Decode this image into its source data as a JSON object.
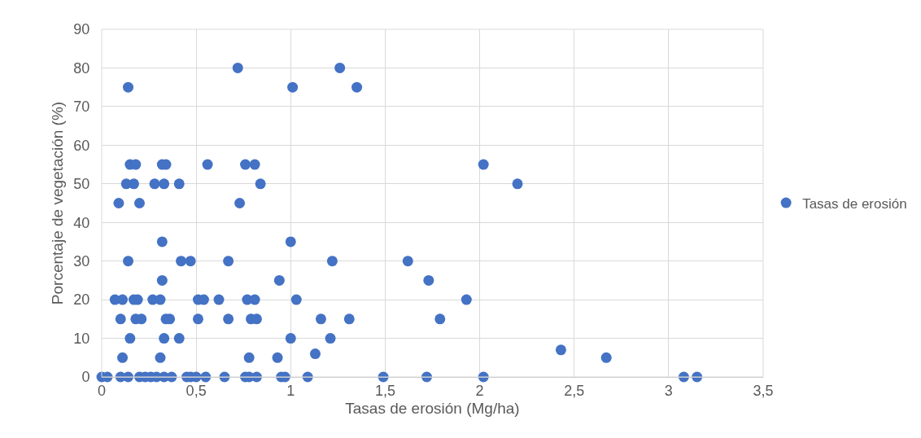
{
  "chart_data": {
    "type": "scatter",
    "xlabel": "Tasas de erosión (Mg/ha)",
    "ylabel": "Porcentaje de vegetación (%)",
    "xlim": [
      0,
      3.5
    ],
    "ylim": [
      0,
      90
    ],
    "xticks": [
      0,
      {
        "value": 0.5,
        "label": "0,5"
      },
      1,
      {
        "value": 1.5,
        "label": "1,5"
      },
      2,
      {
        "value": 2.5,
        "label": "2,5"
      },
      3,
      {
        "value": 3.5,
        "label": "3,5"
      }
    ],
    "yticks": [
      0,
      10,
      20,
      30,
      40,
      50,
      60,
      70,
      80,
      90
    ],
    "grid": true,
    "legend": "right",
    "marker": "circle",
    "series": [
      {
        "name": "Tasas de erosión",
        "color": "#4472c4",
        "x": [
          0,
          0.03,
          0.1,
          0.14,
          0.2,
          0.23,
          0.26,
          0.29,
          0.33,
          0.37,
          0.45,
          0.47,
          0.5,
          0.55,
          0.65,
          0.76,
          0.78,
          0.82,
          0.95,
          0.97,
          1.09,
          1.49,
          1.72,
          2.02,
          3.08,
          3.15,
          0.11,
          0.31,
          0.78,
          0.93,
          1.13,
          2.43,
          2.67,
          0.15,
          0.33,
          0.41,
          1.0,
          1.21,
          0.1,
          0.18,
          0.21,
          0.34,
          0.36,
          0.51,
          0.67,
          0.79,
          0.82,
          1.16,
          1.31,
          1.79,
          0.07,
          0.11,
          0.17,
          0.19,
          0.27,
          0.31,
          0.51,
          0.54,
          0.62,
          0.77,
          0.81,
          1.03,
          1.93,
          0.32,
          0.94,
          1.73,
          0.14,
          0.42,
          0.47,
          0.67,
          1.22,
          1.62,
          0.32,
          1.0,
          0.09,
          0.2,
          0.73,
          0.13,
          0.17,
          0.28,
          0.33,
          0.41,
          0.84,
          2.2,
          0.15,
          0.18,
          0.32,
          0.34,
          0.56,
          0.76,
          0.81,
          2.02,
          0.14,
          1.01,
          1.35,
          0.72,
          1.26
        ],
        "values": [
          0,
          0,
          0,
          0,
          0,
          0,
          0,
          0,
          0,
          0,
          0,
          0,
          0,
          0,
          0,
          0,
          0,
          0,
          0,
          0,
          0,
          0,
          0,
          0,
          0,
          0,
          5,
          5,
          5,
          5,
          6,
          7,
          5,
          10,
          10,
          10,
          10,
          10,
          15,
          15,
          15,
          15,
          15,
          15,
          15,
          15,
          15,
          15,
          15,
          15,
          20,
          20,
          20,
          20,
          20,
          20,
          20,
          20,
          20,
          20,
          20,
          20,
          20,
          25,
          25,
          25,
          30,
          30,
          30,
          30,
          30,
          30,
          35,
          35,
          45,
          45,
          45,
          50,
          50,
          50,
          50,
          50,
          50,
          50,
          55,
          55,
          55,
          55,
          55,
          55,
          55,
          55,
          75,
          75,
          75,
          80,
          80
        ]
      }
    ]
  }
}
